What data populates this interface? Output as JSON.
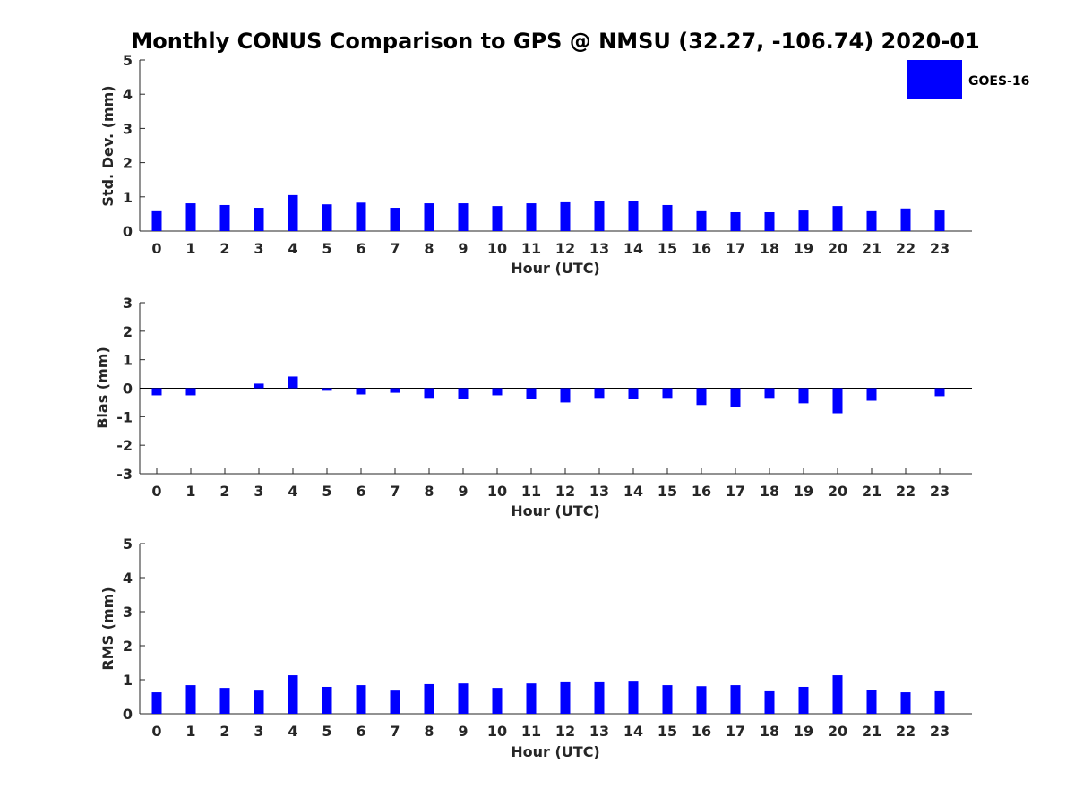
{
  "chart_data": {
    "type": "bar",
    "title": "Monthly CONUS Comparison to GPS @ NMSU (32.27, -106.74) 2020-01",
    "legend": {
      "label": "GOES-16",
      "color": "#0000ff",
      "placement": "top-right"
    },
    "panels": [
      {
        "ylabel": "Std. Dev. (mm)",
        "xlabel": "Hour (UTC)",
        "ylim": [
          0,
          5
        ],
        "yticks": [
          "0",
          "1",
          "2",
          "3",
          "4",
          "5"
        ],
        "categories": [
          "0",
          "1",
          "2",
          "3",
          "4",
          "5",
          "6",
          "7",
          "8",
          "9",
          "10",
          "11",
          "12",
          "13",
          "14",
          "15",
          "16",
          "17",
          "18",
          "19",
          "20",
          "21",
          "22",
          "23"
        ],
        "values": [
          0.58,
          0.81,
          0.76,
          0.68,
          1.05,
          0.78,
          0.83,
          0.68,
          0.81,
          0.81,
          0.73,
          0.81,
          0.84,
          0.89,
          0.89,
          0.76,
          0.58,
          0.55,
          0.55,
          0.6,
          0.73,
          0.58,
          0.66,
          0.6
        ]
      },
      {
        "ylabel": "Bias (mm)",
        "xlabel": "Hour (UTC)",
        "ylim": [
          -3,
          3
        ],
        "yticks": [
          "-3",
          "-2",
          "-1",
          "0",
          "1",
          "2",
          "3"
        ],
        "zeroline": true,
        "categories": [
          "0",
          "1",
          "2",
          "3",
          "4",
          "5",
          "6",
          "7",
          "8",
          "9",
          "10",
          "11",
          "12",
          "13",
          "14",
          "15",
          "16",
          "17",
          "18",
          "19",
          "20",
          "21",
          "22",
          "23"
        ],
        "values": [
          -0.25,
          -0.25,
          0.0,
          0.16,
          0.41,
          -0.09,
          -0.22,
          -0.16,
          -0.34,
          -0.38,
          -0.25,
          -0.38,
          -0.5,
          -0.34,
          -0.38,
          -0.34,
          -0.59,
          -0.66,
          -0.34,
          -0.53,
          -0.88,
          -0.44,
          0.0,
          -0.28
        ]
      },
      {
        "ylabel": "RMS (mm)",
        "xlabel": "Hour (UTC)",
        "ylim": [
          0,
          5
        ],
        "yticks": [
          "0",
          "1",
          "2",
          "3",
          "4",
          "5"
        ],
        "categories": [
          "0",
          "1",
          "2",
          "3",
          "4",
          "5",
          "6",
          "7",
          "8",
          "9",
          "10",
          "11",
          "12",
          "13",
          "14",
          "15",
          "16",
          "17",
          "18",
          "19",
          "20",
          "21",
          "22",
          "23"
        ],
        "values": [
          0.63,
          0.84,
          0.76,
          0.68,
          1.13,
          0.79,
          0.84,
          0.68,
          0.87,
          0.89,
          0.76,
          0.89,
          0.95,
          0.95,
          0.97,
          0.84,
          0.81,
          0.84,
          0.66,
          0.79,
          1.13,
          0.71,
          0.63,
          0.66
        ]
      }
    ]
  }
}
